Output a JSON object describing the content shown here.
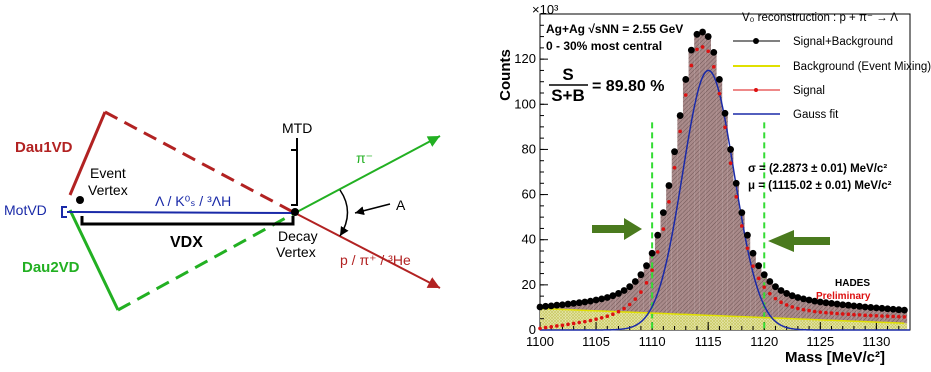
{
  "diagram": {
    "labels": {
      "dau1": "Dau1VD",
      "mot": "MotVD",
      "dau2": "Dau2VD",
      "event_vertex_1": "Event",
      "event_vertex_2": "Vertex",
      "mother_particles": "Λ / K⁰ₛ / ³ΛH",
      "vdx": "VDX",
      "mtd": "MTD",
      "decay_vertex_1": "Decay",
      "decay_vertex_2": "Vertex",
      "pion": "π⁻",
      "angle": "A",
      "proton": "p / π⁺ / ³He"
    },
    "colors": {
      "red": "#b22222",
      "green": "#22b022",
      "blue": "#1a2aa8",
      "black": "#000000"
    }
  },
  "chart_data": {
    "type": "bar",
    "exponent_label": "×10³",
    "ylabel": "Counts",
    "xlabel": "Mass [MeV/c²]",
    "xlim": [
      1100,
      1133
    ],
    "ylim": [
      0,
      140
    ],
    "xticks": [
      1100,
      1105,
      1110,
      1115,
      1120,
      1125,
      1130
    ],
    "yticks": [
      0,
      20,
      40,
      60,
      80,
      100,
      120
    ],
    "info": {
      "system": "Ag+Ag √sNN = 2.55 GeV",
      "centrality": "0 - 30% most central",
      "ratio_label": "S / S+B = 89.80 %",
      "ratio_s": "S",
      "ratio_sb": "S+B",
      "ratio_value": "= 89.80 %",
      "sigma": "σ = (2.2873 ± 0.01) MeV/c²",
      "mu": "μ = (1115.02 ± 0.01) MeV/c²",
      "hades": "HADES",
      "preliminary": "Preliminary"
    },
    "legend": {
      "title": "V₀ reconstruction : p + π⁻ → Λ",
      "placement": "top-right",
      "entries": [
        "Signal+Background",
        "Background (Event Mixing)",
        "Signal",
        "Gauss fit"
      ]
    },
    "gauss": {
      "mu": 1115.02,
      "sigma": 2.2873,
      "amplitude": 115
    },
    "signal_window": [
      1110,
      1120
    ],
    "x": [
      1100,
      1100.5,
      1101,
      1101.5,
      1102,
      1102.5,
      1103,
      1103.5,
      1104,
      1104.5,
      1105,
      1105.5,
      1106,
      1106.5,
      1107,
      1107.5,
      1108,
      1108.5,
      1109,
      1109.5,
      1110,
      1110.5,
      1111,
      1111.5,
      1112,
      1112.5,
      1113,
      1113.5,
      1114,
      1114.5,
      1115,
      1115.5,
      1116,
      1116.5,
      1117,
      1117.5,
      1118,
      1118.5,
      1119,
      1119.5,
      1120,
      1120.5,
      1121,
      1121.5,
      1122,
      1122.5,
      1123,
      1123.5,
      1124,
      1124.5,
      1125,
      1125.5,
      1126,
      1126.5,
      1127,
      1127.5,
      1128,
      1128.5,
      1129,
      1129.5,
      1130,
      1130.5,
      1131,
      1131.5,
      1132,
      1132.5
    ],
    "series": [
      {
        "name": "Signal+Background",
        "color": "#000000",
        "values": [
          10.2,
          10.5,
          10.7,
          11,
          11.2,
          11.5,
          11.8,
          12.1,
          12.4,
          12.8,
          13.3,
          13.8,
          14.4,
          15.2,
          16.2,
          17.5,
          19.2,
          21.5,
          24.5,
          28.5,
          34,
          42,
          52,
          64,
          79,
          95,
          111,
          124,
          131,
          132,
          130,
          123,
          111,
          96,
          80,
          65,
          52,
          42,
          34,
          28.5,
          24.5,
          21.5,
          19.2,
          17.5,
          16.2,
          15.2,
          14.4,
          13.8,
          13.3,
          12.8,
          12.4,
          12.1,
          11.8,
          11.5,
          11.2,
          11,
          10.7,
          10.5,
          10.2,
          10,
          9.8,
          9.6,
          9.4,
          9.2,
          9,
          8.8
        ]
      },
      {
        "name": "Background (Event Mixing)",
        "color": "#e0e000",
        "values": [
          9.5,
          9.4,
          9.3,
          9.2,
          9.1,
          9,
          8.9,
          8.8,
          8.7,
          8.6,
          8.5,
          8.4,
          8.3,
          8.2,
          8.1,
          8,
          7.9,
          7.8,
          7.7,
          7.6,
          7.5,
          7.4,
          7.3,
          7.2,
          7.1,
          7,
          6.9,
          6.8,
          6.7,
          6.6,
          6.5,
          6.4,
          6.3,
          6.2,
          6.1,
          6,
          5.9,
          5.8,
          5.7,
          5.6,
          5.5,
          5.4,
          5.3,
          5.2,
          5.1,
          5,
          4.9,
          4.8,
          4.7,
          4.6,
          4.5,
          4.4,
          4.3,
          4.2,
          4.1,
          4,
          3.9,
          3.8,
          3.7,
          3.6,
          3.5,
          3.4,
          3.3,
          3.2,
          3.1,
          3
        ]
      },
      {
        "name": "Signal",
        "color": "#dd1111",
        "values": [
          0.7,
          1.1,
          1.4,
          1.8,
          2.1,
          2.5,
          2.9,
          3.3,
          3.7,
          4.2,
          4.8,
          5.4,
          6.1,
          7,
          8.1,
          9.5,
          11.3,
          13.7,
          16.8,
          20.9,
          26.5,
          34.6,
          44.7,
          56.8,
          71.9,
          88,
          104.1,
          117.2,
          124.3,
          125.4,
          123.5,
          116.6,
          104.7,
          89.8,
          73.9,
          59,
          46.1,
          36.2,
          28.3,
          22.9,
          19,
          16.1,
          13.9,
          12.3,
          11.1,
          10.2,
          9.5,
          9,
          8.6,
          8.2,
          7.9,
          7.7,
          7.5,
          7.3,
          7.1,
          7,
          6.8,
          6.7,
          6.5,
          6.4,
          6.3,
          6.2,
          6.1,
          6,
          5.9,
          5.8
        ]
      }
    ]
  }
}
